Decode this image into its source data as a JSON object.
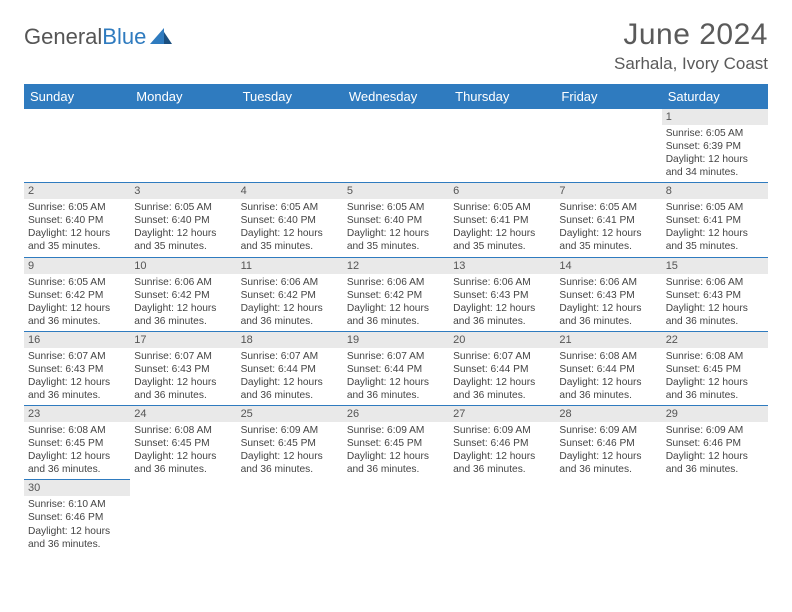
{
  "brand": {
    "part1": "General",
    "part2": "Blue"
  },
  "title": "June 2024",
  "location": "Sarhala, Ivory Coast",
  "header_bg": "#2f7bbf",
  "header_fg": "#ffffff",
  "daynum_bg": "#e9e9e9",
  "rule_color": "#2f7bbf",
  "weekdays": [
    "Sunday",
    "Monday",
    "Tuesday",
    "Wednesday",
    "Thursday",
    "Friday",
    "Saturday"
  ],
  "weeks": [
    [
      {
        "n": "",
        "sr": "",
        "ss": "",
        "dl": ""
      },
      {
        "n": "",
        "sr": "",
        "ss": "",
        "dl": ""
      },
      {
        "n": "",
        "sr": "",
        "ss": "",
        "dl": ""
      },
      {
        "n": "",
        "sr": "",
        "ss": "",
        "dl": ""
      },
      {
        "n": "",
        "sr": "",
        "ss": "",
        "dl": ""
      },
      {
        "n": "",
        "sr": "",
        "ss": "",
        "dl": ""
      },
      {
        "n": "1",
        "sr": "Sunrise: 6:05 AM",
        "ss": "Sunset: 6:39 PM",
        "dl": "Daylight: 12 hours and 34 minutes."
      }
    ],
    [
      {
        "n": "2",
        "sr": "Sunrise: 6:05 AM",
        "ss": "Sunset: 6:40 PM",
        "dl": "Daylight: 12 hours and 35 minutes."
      },
      {
        "n": "3",
        "sr": "Sunrise: 6:05 AM",
        "ss": "Sunset: 6:40 PM",
        "dl": "Daylight: 12 hours and 35 minutes."
      },
      {
        "n": "4",
        "sr": "Sunrise: 6:05 AM",
        "ss": "Sunset: 6:40 PM",
        "dl": "Daylight: 12 hours and 35 minutes."
      },
      {
        "n": "5",
        "sr": "Sunrise: 6:05 AM",
        "ss": "Sunset: 6:40 PM",
        "dl": "Daylight: 12 hours and 35 minutes."
      },
      {
        "n": "6",
        "sr": "Sunrise: 6:05 AM",
        "ss": "Sunset: 6:41 PM",
        "dl": "Daylight: 12 hours and 35 minutes."
      },
      {
        "n": "7",
        "sr": "Sunrise: 6:05 AM",
        "ss": "Sunset: 6:41 PM",
        "dl": "Daylight: 12 hours and 35 minutes."
      },
      {
        "n": "8",
        "sr": "Sunrise: 6:05 AM",
        "ss": "Sunset: 6:41 PM",
        "dl": "Daylight: 12 hours and 35 minutes."
      }
    ],
    [
      {
        "n": "9",
        "sr": "Sunrise: 6:05 AM",
        "ss": "Sunset: 6:42 PM",
        "dl": "Daylight: 12 hours and 36 minutes."
      },
      {
        "n": "10",
        "sr": "Sunrise: 6:06 AM",
        "ss": "Sunset: 6:42 PM",
        "dl": "Daylight: 12 hours and 36 minutes."
      },
      {
        "n": "11",
        "sr": "Sunrise: 6:06 AM",
        "ss": "Sunset: 6:42 PM",
        "dl": "Daylight: 12 hours and 36 minutes."
      },
      {
        "n": "12",
        "sr": "Sunrise: 6:06 AM",
        "ss": "Sunset: 6:42 PM",
        "dl": "Daylight: 12 hours and 36 minutes."
      },
      {
        "n": "13",
        "sr": "Sunrise: 6:06 AM",
        "ss": "Sunset: 6:43 PM",
        "dl": "Daylight: 12 hours and 36 minutes."
      },
      {
        "n": "14",
        "sr": "Sunrise: 6:06 AM",
        "ss": "Sunset: 6:43 PM",
        "dl": "Daylight: 12 hours and 36 minutes."
      },
      {
        "n": "15",
        "sr": "Sunrise: 6:06 AM",
        "ss": "Sunset: 6:43 PM",
        "dl": "Daylight: 12 hours and 36 minutes."
      }
    ],
    [
      {
        "n": "16",
        "sr": "Sunrise: 6:07 AM",
        "ss": "Sunset: 6:43 PM",
        "dl": "Daylight: 12 hours and 36 minutes."
      },
      {
        "n": "17",
        "sr": "Sunrise: 6:07 AM",
        "ss": "Sunset: 6:43 PM",
        "dl": "Daylight: 12 hours and 36 minutes."
      },
      {
        "n": "18",
        "sr": "Sunrise: 6:07 AM",
        "ss": "Sunset: 6:44 PM",
        "dl": "Daylight: 12 hours and 36 minutes."
      },
      {
        "n": "19",
        "sr": "Sunrise: 6:07 AM",
        "ss": "Sunset: 6:44 PM",
        "dl": "Daylight: 12 hours and 36 minutes."
      },
      {
        "n": "20",
        "sr": "Sunrise: 6:07 AM",
        "ss": "Sunset: 6:44 PM",
        "dl": "Daylight: 12 hours and 36 minutes."
      },
      {
        "n": "21",
        "sr": "Sunrise: 6:08 AM",
        "ss": "Sunset: 6:44 PM",
        "dl": "Daylight: 12 hours and 36 minutes."
      },
      {
        "n": "22",
        "sr": "Sunrise: 6:08 AM",
        "ss": "Sunset: 6:45 PM",
        "dl": "Daylight: 12 hours and 36 minutes."
      }
    ],
    [
      {
        "n": "23",
        "sr": "Sunrise: 6:08 AM",
        "ss": "Sunset: 6:45 PM",
        "dl": "Daylight: 12 hours and 36 minutes."
      },
      {
        "n": "24",
        "sr": "Sunrise: 6:08 AM",
        "ss": "Sunset: 6:45 PM",
        "dl": "Daylight: 12 hours and 36 minutes."
      },
      {
        "n": "25",
        "sr": "Sunrise: 6:09 AM",
        "ss": "Sunset: 6:45 PM",
        "dl": "Daylight: 12 hours and 36 minutes."
      },
      {
        "n": "26",
        "sr": "Sunrise: 6:09 AM",
        "ss": "Sunset: 6:45 PM",
        "dl": "Daylight: 12 hours and 36 minutes."
      },
      {
        "n": "27",
        "sr": "Sunrise: 6:09 AM",
        "ss": "Sunset: 6:46 PM",
        "dl": "Daylight: 12 hours and 36 minutes."
      },
      {
        "n": "28",
        "sr": "Sunrise: 6:09 AM",
        "ss": "Sunset: 6:46 PM",
        "dl": "Daylight: 12 hours and 36 minutes."
      },
      {
        "n": "29",
        "sr": "Sunrise: 6:09 AM",
        "ss": "Sunset: 6:46 PM",
        "dl": "Daylight: 12 hours and 36 minutes."
      }
    ],
    [
      {
        "n": "30",
        "sr": "Sunrise: 6:10 AM",
        "ss": "Sunset: 6:46 PM",
        "dl": "Daylight: 12 hours and 36 minutes."
      },
      {
        "n": "",
        "sr": "",
        "ss": "",
        "dl": ""
      },
      {
        "n": "",
        "sr": "",
        "ss": "",
        "dl": ""
      },
      {
        "n": "",
        "sr": "",
        "ss": "",
        "dl": ""
      },
      {
        "n": "",
        "sr": "",
        "ss": "",
        "dl": ""
      },
      {
        "n": "",
        "sr": "",
        "ss": "",
        "dl": ""
      },
      {
        "n": "",
        "sr": "",
        "ss": "",
        "dl": ""
      }
    ]
  ]
}
